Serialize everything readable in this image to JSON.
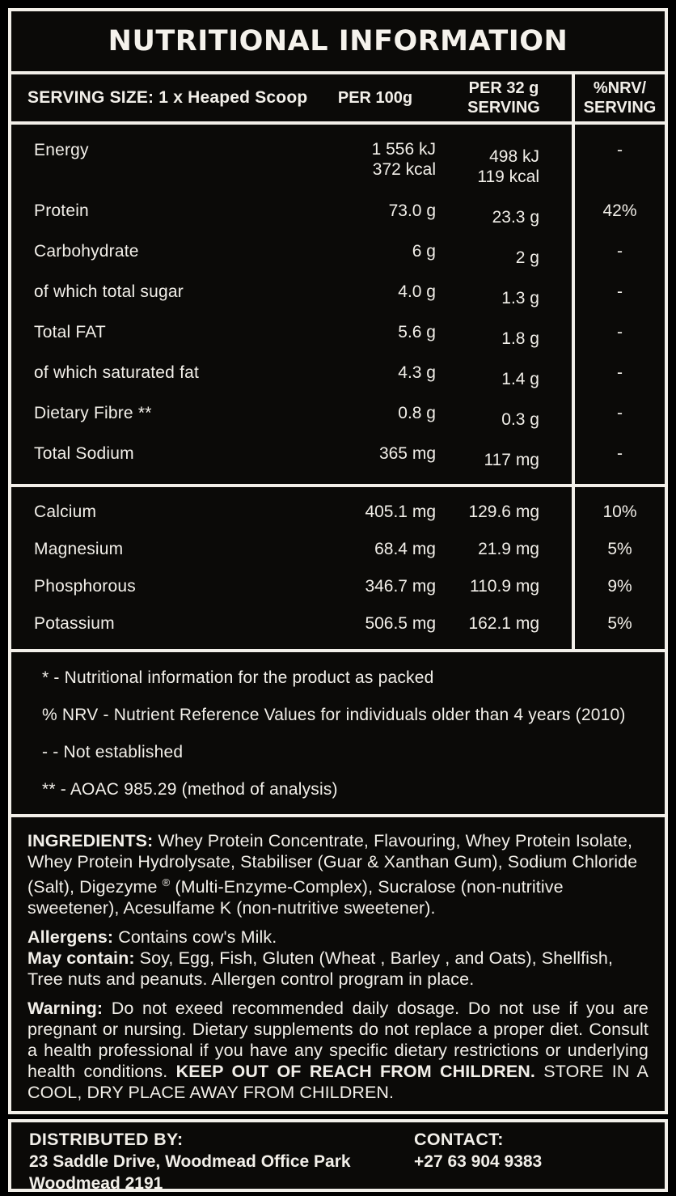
{
  "colors": {
    "background": "#0b0a08",
    "border": "#f2efe9",
    "text": "#f2efe9"
  },
  "title": "NUTRITIONAL INFORMATION",
  "table": {
    "header": {
      "serving_size": "SERVING SIZE: 1 x Heaped Scoop",
      "col_per100g": "PER 100g",
      "col_per_serving_line1": "PER 32 g",
      "col_per_serving_line2": "SERVING",
      "col_nrv_line1": "%NRV/",
      "col_nrv_line2": "SERVING"
    },
    "energy": {
      "label": "Energy",
      "per100g_line1": "1 556 kJ",
      "per100g_line2": "372 kcal",
      "serving_line1": "498 kJ",
      "serving_line2": "119 kcal",
      "nrv": "-"
    },
    "nutrients": [
      {
        "label": "Protein",
        "per100g": "73.0 g",
        "per_serving": "23.3 g",
        "nrv": "42%"
      },
      {
        "label": "Carbohydrate",
        "per100g": "6 g",
        "per_serving": "2 g",
        "nrv": "-"
      },
      {
        "label": "of which total sugar",
        "per100g": "4.0 g",
        "per_serving": "1.3 g",
        "nrv": "-"
      },
      {
        "label": "Total FAT",
        "per100g": "5.6 g",
        "per_serving": "1.8 g",
        "nrv": "-"
      },
      {
        "label": "of which saturated fat",
        "per100g": "4.3 g",
        "per_serving": "1.4 g",
        "nrv": "-"
      },
      {
        "label": "Dietary Fibre **",
        "per100g": "0.8 g",
        "per_serving": "0.3 g",
        "nrv": "-"
      },
      {
        "label": "Total Sodium",
        "per100g": "365 mg",
        "per_serving": "117 mg",
        "nrv": "-"
      }
    ],
    "minerals": [
      {
        "label": "Calcium",
        "per100g": "405.1 mg",
        "per_serving": "129.6 mg",
        "nrv": "10%"
      },
      {
        "label": "Magnesium",
        "per100g": "68.4 mg",
        "per_serving": "21.9 mg",
        "nrv": "5%"
      },
      {
        "label": "Phosphorous",
        "per100g": "346.7 mg",
        "per_serving": "110.9 mg",
        "nrv": "9%"
      },
      {
        "label": "Potassium",
        "per100g": "506.5 mg",
        "per_serving": "162.1 mg",
        "nrv": "5%"
      }
    ]
  },
  "footnotes": {
    "line1": "* - Nutritional information for the product as packed",
    "line2": "% NRV - Nutrient Reference Values for individuals older than 4 years (2010)",
    "line3": "- - Not established",
    "line4": "** - AOAC 985.29 (method of analysis)"
  },
  "ingredients": {
    "label": "INGREDIENTS:",
    "text_before_reg": " Whey Protein Concentrate, Flavouring, Whey Protein Isolate, Whey Protein Hydrolysate, Stabiliser (Guar & Xanthan Gum), Sodium Chloride (Salt), Digezyme ",
    "reg_mark": "®",
    "text_after_reg": " (Multi-Enzyme-Complex), Sucralose (non-nutritive sweetener), Acesulfame K (non-nutritive sweetener)."
  },
  "allergens": {
    "label": "Allergens:",
    "text": " Contains cow's Milk."
  },
  "may_contain": {
    "label": "May contain:",
    "text": " Soy, Egg, Fish, Gluten (Wheat , Barley , and Oats), Shellfish, Tree nuts and peanuts. Allergen control program in place."
  },
  "warning": {
    "label": "Warning:",
    "text": " Do not exeed recommended daily dosage. Do not use if you are pregnant or nursing. Dietary supplements do not replace a proper diet. Consult a health professional if you have any specific dietary restrictions or underlying health conditions. ",
    "bold_text": "KEEP OUT OF REACH FROM CHILDREN.",
    "tail_text": " STORE IN A COOL, DRY PLACE AWAY FROM CHILDREN."
  },
  "distributor": {
    "label": "DISTRIBUTED BY:",
    "address_line1": "23 Saddle Drive, Woodmead Office Park",
    "address_line2": "Woodmead 2191"
  },
  "contact": {
    "label": "CONTACT:",
    "phone": "+27 63 904 9383"
  }
}
